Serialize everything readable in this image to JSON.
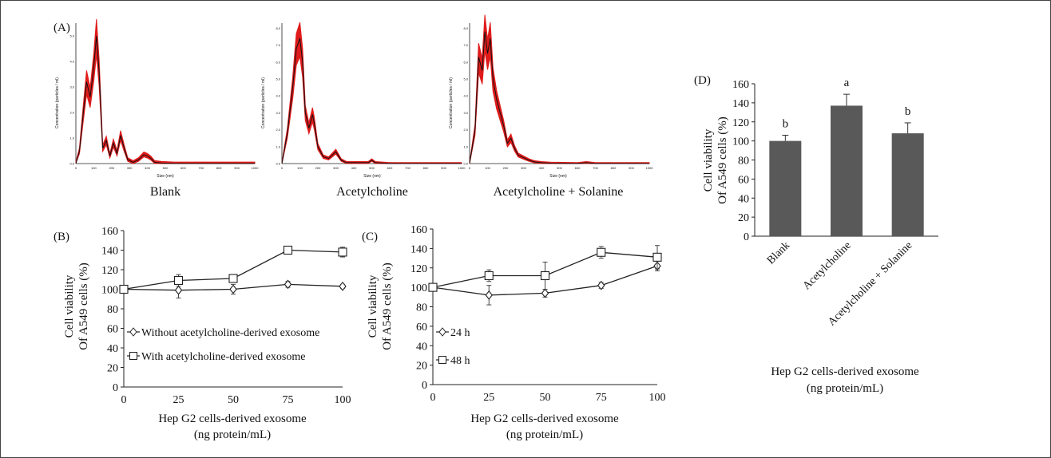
{
  "panels": {
    "a": "(A)",
    "b": "(B)",
    "c": "(C)",
    "d": "(D)"
  },
  "nta": {
    "ylabel": "Concentration (particles / ml)",
    "xlabel": "Size (nm)",
    "captions": [
      "Blank",
      "Acetylcholine",
      "Acetylcholine + Solanine"
    ]
  },
  "axis_text": {
    "ylabel_line1": "Cell viability",
    "ylabel_line2": "Of A549 cells (%)",
    "xlabel_line1": "Hep G2 cells-derived exosome",
    "xlabel_line2": "(ng protein/mL)"
  },
  "colors": {
    "nta_fill": "#e01b1b",
    "nta_line": "#111111",
    "bar": "#595959",
    "axis": "#222222"
  },
  "chart_data": [
    {
      "panel": "A-Blank",
      "type": "area",
      "title": "Blank",
      "xlabel": "Size (nm)",
      "ylabel": "Concentration (particles / ml)",
      "xlim": [
        0,
        1000
      ],
      "ylim": [
        0,
        5.5
      ],
      "x_ticks": [
        0,
        100,
        200,
        300,
        400,
        500,
        600,
        700,
        800,
        900,
        1000
      ],
      "y_ticks": [
        0,
        1.0,
        2.0,
        3.0,
        4.0,
        5.0
      ],
      "x": [
        0,
        20,
        40,
        60,
        80,
        100,
        115,
        130,
        150,
        170,
        190,
        210,
        230,
        250,
        270,
        290,
        320,
        350,
        380,
        400,
        420,
        440,
        480,
        550,
        700,
        1000
      ],
      "y": [
        0,
        0.5,
        1.9,
        3.2,
        2.6,
        3.8,
        5.0,
        3.6,
        0.6,
        0.9,
        0.3,
        0.8,
        0.4,
        1.1,
        0.6,
        0.15,
        0.05,
        0.15,
        0.35,
        0.3,
        0.2,
        0.05,
        0.02,
        0,
        0,
        0
      ]
    },
    {
      "panel": "A-Acetylcholine",
      "type": "area",
      "title": "Acetylcholine",
      "xlabel": "Size (nm)",
      "ylabel": "Concentration (particles / ml)",
      "xlim": [
        0,
        1000
      ],
      "ylim": [
        0,
        8.3
      ],
      "x_ticks": [
        0,
        100,
        200,
        300,
        400,
        500,
        600,
        700,
        800,
        900,
        1000
      ],
      "y_ticks": [
        0,
        1.0,
        2.0,
        3.0,
        4.0,
        5.0,
        6.0,
        7.0,
        8.0
      ],
      "x": [
        0,
        30,
        60,
        80,
        100,
        115,
        130,
        150,
        170,
        180,
        200,
        230,
        260,
        300,
        330,
        360,
        480,
        500,
        520,
        600,
        1000
      ],
      "y": [
        0,
        1.8,
        4.5,
        6.8,
        7.4,
        6.0,
        3.0,
        2.1,
        2.9,
        2.4,
        1.0,
        0.4,
        0.3,
        0.7,
        0.2,
        0.05,
        0.05,
        0.2,
        0.05,
        0,
        0
      ]
    },
    {
      "panel": "A-Acetylcholine+Solanine",
      "type": "area",
      "title": "Acetylcholine + Solanine",
      "xlabel": "Size (nm)",
      "ylabel": "Concentration (particles / ml)",
      "xlim": [
        0,
        1000
      ],
      "ylim": [
        0,
        8.3
      ],
      "x_ticks": [
        0,
        100,
        200,
        300,
        400,
        500,
        600,
        700,
        800,
        900,
        1000
      ],
      "y_ticks": [
        0,
        1.0,
        2.0,
        3.0,
        4.0,
        5.0,
        6.0,
        7.0,
        8.0
      ],
      "x": [
        0,
        30,
        50,
        70,
        85,
        100,
        115,
        130,
        150,
        170,
        190,
        210,
        230,
        250,
        270,
        300,
        330,
        360,
        400,
        450,
        600,
        650,
        700,
        1000
      ],
      "y": [
        0,
        2.0,
        6.3,
        5.5,
        7.8,
        6.5,
        7.4,
        5.0,
        3.8,
        3.0,
        2.2,
        1.2,
        1.5,
        0.9,
        0.5,
        0.35,
        0.2,
        0.1,
        0.05,
        0.02,
        0,
        0.05,
        0,
        0
      ]
    },
    {
      "panel": "B",
      "type": "line",
      "x": [
        0,
        25,
        50,
        75,
        100
      ],
      "xlim": [
        0,
        100
      ],
      "ylim": [
        0,
        160
      ],
      "x_ticks": [
        0,
        25,
        50,
        75,
        100
      ],
      "y_ticks": [
        0,
        20,
        40,
        60,
        80,
        100,
        120,
        140,
        160
      ],
      "xlabel": "Hep G2 cells-derived exosome (ng protein/mL)",
      "ylabel": "Cell viability Of A549 cells (%)",
      "legend_position": "lower-left",
      "series": [
        {
          "name": "Without acetylcholine-derived exosome",
          "marker": "diamond",
          "values": [
            100,
            99,
            100,
            105,
            103
          ],
          "errors": [
            2,
            8,
            5,
            3,
            2
          ]
        },
        {
          "name": "With acetylcholine-derived exosome",
          "marker": "square",
          "values": [
            100,
            109,
            111,
            140,
            138
          ],
          "errors": [
            3,
            6,
            4,
            4,
            5
          ]
        }
      ]
    },
    {
      "panel": "C",
      "type": "line",
      "x": [
        0,
        25,
        50,
        75,
        100
      ],
      "xlim": [
        0,
        100
      ],
      "ylim": [
        0,
        160
      ],
      "x_ticks": [
        0,
        25,
        50,
        75,
        100
      ],
      "y_ticks": [
        0,
        20,
        40,
        60,
        80,
        100,
        120,
        140,
        160
      ],
      "xlabel": "Hep G2 cells-derived exosome (ng protein/mL)",
      "ylabel": "Cell viability Of A549 cells (%)",
      "legend_position": "lower-left",
      "series": [
        {
          "name": "24 h",
          "marker": "diamond",
          "values": [
            100,
            92,
            94,
            102,
            122
          ],
          "errors": [
            3,
            10,
            4,
            3,
            5
          ]
        },
        {
          "name": "48 h",
          "marker": "square",
          "values": [
            100,
            112,
            112,
            136,
            131
          ],
          "errors": [
            3,
            6,
            14,
            6,
            12
          ]
        }
      ]
    },
    {
      "panel": "D",
      "type": "bar",
      "categories": [
        "Blank",
        "Acetylcholine",
        "Acetylcholine + Solanine"
      ],
      "values": [
        100,
        137,
        108
      ],
      "errors": [
        6,
        12,
        11
      ],
      "annotations": [
        "b",
        "a",
        "b"
      ],
      "ylim": [
        0,
        160
      ],
      "y_ticks": [
        0,
        20,
        40,
        60,
        80,
        100,
        120,
        140,
        160
      ],
      "xlabel": "Hep G2 cells-derived exosome (ng protein/mL)",
      "ylabel": "Cell viability Of A549 cells (%)"
    }
  ]
}
